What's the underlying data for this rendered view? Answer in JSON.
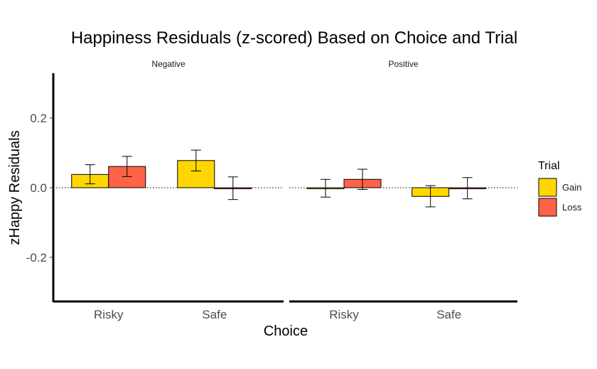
{
  "chart_data": {
    "type": "bar",
    "title": "Happiness Residuals (z-scored) Based on Choice and Trial",
    "xlabel": "Choice",
    "ylabel": "zHappy Residuals",
    "ylim": [
      -0.33,
      0.33
    ],
    "yticks": [
      -0.2,
      0.0,
      0.2
    ],
    "ytick_labels": [
      "-0.2",
      "0.0",
      "0.2"
    ],
    "categories": [
      "Risky",
      "Safe"
    ],
    "panels": [
      {
        "name": "Negative",
        "series": [
          {
            "name": "Gain",
            "values": [
              0.038,
              0.078
            ],
            "err_low": [
              0.011,
              0.048
            ],
            "err_high": [
              0.066,
              0.108
            ]
          },
          {
            "name": "Loss",
            "values": [
              0.061,
              -0.002
            ],
            "err_low": [
              0.032,
              -0.034
            ],
            "err_high": [
              0.09,
              0.031
            ]
          }
        ]
      },
      {
        "name": "Positive",
        "series": [
          {
            "name": "Gain",
            "values": [
              -0.002,
              -0.025
            ],
            "err_low": [
              -0.027,
              -0.055
            ],
            "err_high": [
              0.024,
              0.006
            ]
          },
          {
            "name": "Loss",
            "values": [
              0.024,
              -0.002
            ],
            "err_low": [
              -0.005,
              -0.032
            ],
            "err_high": [
              0.053,
              0.029
            ]
          }
        ]
      }
    ],
    "reference_line": 0,
    "legend": {
      "title": "Trial",
      "position": "right",
      "entries": [
        "Gain",
        "Loss"
      ]
    },
    "colors": {
      "Gain": "#FFD700",
      "Loss": "#FF6347"
    },
    "grid": false
  }
}
